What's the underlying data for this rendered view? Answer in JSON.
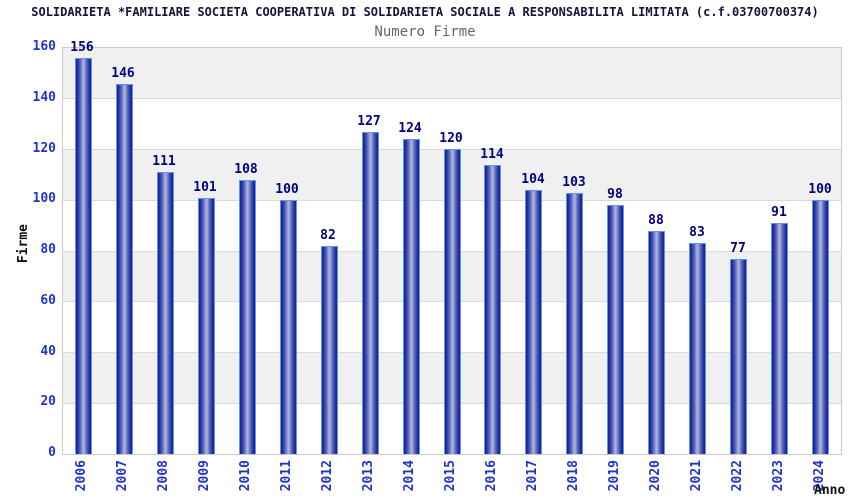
{
  "header": {
    "title": "SOLIDARIETA *FAMILIARE SOCIETA COOPERATIVA DI SOLIDARIETA SOCIALE A RESPONSABILITA LIMITATA (c.f.03700700374)",
    "subtitle": "Numero Firme"
  },
  "chart_data": {
    "type": "bar",
    "title": "SOLIDARIETA *FAMILIARE SOCIETA COOPERATIVA DI SOLIDARIETA SOCIALE A RESPONSABILITA LIMITATA (c.f.03700700374)",
    "subtitle": "Numero Firme",
    "categories": [
      "2006",
      "2007",
      "2008",
      "2009",
      "2010",
      "2011",
      "2012",
      "2013",
      "2014",
      "2015",
      "2016",
      "2017",
      "2018",
      "2019",
      "2020",
      "2021",
      "2022",
      "2023",
      "2024"
    ],
    "values": [
      156,
      146,
      111,
      101,
      108,
      100,
      82,
      127,
      124,
      120,
      114,
      104,
      103,
      98,
      88,
      83,
      77,
      91,
      100
    ],
    "xlabel": "Anno",
    "ylabel": "Firme",
    "ylim": [
      0,
      160
    ],
    "yticks": [
      0,
      20,
      40,
      60,
      80,
      100,
      120,
      140,
      160
    ],
    "grid": true,
    "grid_bands": "alternating horizontal gray/white every 20 units, gray at top band",
    "legend": "none",
    "bar_labels": true
  },
  "colors": {
    "background": "#ffffff",
    "title_text": "#14143c",
    "subtitle_text": "#666666",
    "bar_edge_dark": "#141f96",
    "bar_center_light": "#aab3dc",
    "bar_outline": "#5e96ef",
    "value_label_text": "#000080",
    "axis_tick_text": "#2233cc",
    "axis_title_text": "#111111",
    "band_gray": "#f0f0f0",
    "gridline": "#dadada",
    "plot_border": "#c9c9c9"
  }
}
